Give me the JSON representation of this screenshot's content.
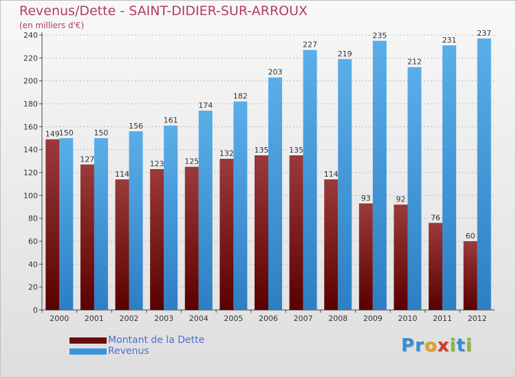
{
  "title": "Revenus/Dette - SAINT-DIDIER-SUR-ARROUX",
  "subtitle": "(en milliers d'€)",
  "colors": {
    "title": "#b03a6a",
    "debt_light": "#9b3a3a",
    "debt_dark": "#5a0000",
    "revenue_light": "#5aaee8",
    "revenue_dark": "#2d7fc4",
    "legend_text": "#4a6fd0"
  },
  "legend": [
    {
      "label": "Montant de la Dette",
      "color": "#6b0a0a"
    },
    {
      "label": "Revenus",
      "color": "#3c95dc"
    }
  ],
  "logo": {
    "letters": [
      "P",
      "r",
      "o",
      "x",
      "i",
      "t",
      "i"
    ],
    "colors": [
      "#2f8fd8",
      "#2f8fd8",
      "#e8a020",
      "#d03a2a",
      "#8ab830",
      "#2f8fd8",
      "#8ab830"
    ]
  },
  "chart_data": {
    "type": "bar",
    "categories": [
      "2000",
      "2001",
      "2002",
      "2003",
      "2004",
      "2005",
      "2006",
      "2007",
      "2008",
      "2009",
      "2010",
      "2011",
      "2012"
    ],
    "series": [
      {
        "name": "Montant de la Dette",
        "values": [
          149,
          127,
          114,
          123,
          125,
          132,
          135,
          135,
          114,
          93,
          92,
          76,
          60
        ]
      },
      {
        "name": "Revenus",
        "values": [
          150,
          150,
          156,
          161,
          174,
          182,
          203,
          227,
          219,
          235,
          212,
          231,
          237
        ]
      }
    ],
    "ylim": [
      0,
      240
    ],
    "yticks": [
      0,
      20,
      40,
      60,
      80,
      100,
      120,
      140,
      160,
      180,
      200,
      220,
      240
    ],
    "grid": true,
    "legend_position": "bottom-left"
  }
}
